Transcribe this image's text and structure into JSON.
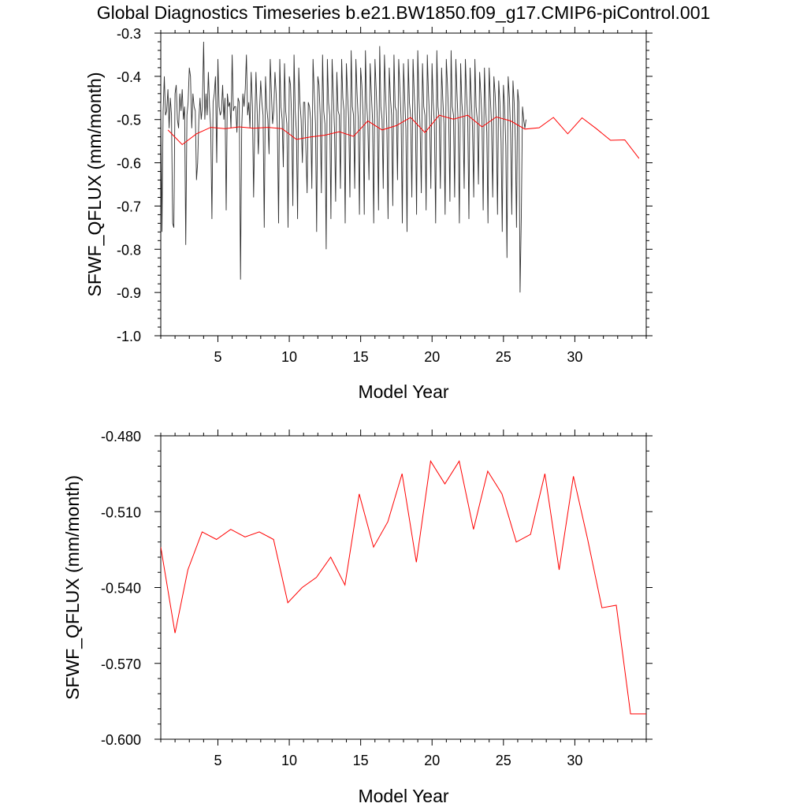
{
  "title": "Global Diagnostics Timeseries b.e21.BW1850.f09_g17.CMIP6-piControl.001",
  "colors": {
    "monthly": "#303030",
    "annual": "#ff0000",
    "axis": "#000000"
  },
  "chart_data": [
    {
      "type": "line",
      "title": "Global Diagnostics Timeseries b.e21.BW1850.f09_g17.CMIP6-piControl.001",
      "xlabel": "Model Year",
      "ylabel": "SFWF_QFLUX (mm/month)",
      "xlim": [
        1,
        35
      ],
      "ylim": [
        -1.0,
        -0.3
      ],
      "xticks": [
        5,
        10,
        15,
        20,
        25,
        30
      ],
      "xtick_labels": [
        "5",
        "10",
        "15",
        "20",
        "25",
        "30"
      ],
      "yticks": [
        -1.0,
        -0.9,
        -0.8,
        -0.7,
        -0.6,
        -0.5,
        -0.4,
        -0.3
      ],
      "ytick_labels": [
        "-1.0",
        "-0.9",
        "-0.8",
        "-0.7",
        "-0.6",
        "-0.5",
        "-0.4",
        "-0.3"
      ],
      "series": [
        {
          "name": "monthly",
          "color": "#303030",
          "x0": 1.0,
          "dx": 0.08333,
          "values": [
            -0.46,
            -0.76,
            -0.48,
            -0.4,
            -0.49,
            -0.48,
            -0.43,
            -0.52,
            -0.45,
            -0.49,
            -0.74,
            -0.75,
            -0.44,
            -0.42,
            -0.5,
            -0.52,
            -0.44,
            -0.48,
            -0.43,
            -0.5,
            -0.47,
            -0.79,
            -0.49,
            -0.46,
            -0.38,
            -0.4,
            -0.52,
            -0.44,
            -0.47,
            -0.48,
            -0.64,
            -0.6,
            -0.5,
            -0.45,
            -0.5,
            -0.47,
            -0.32,
            -0.5,
            -0.44,
            -0.49,
            -0.39,
            -0.47,
            -0.52,
            -0.73,
            -0.46,
            -0.44,
            -0.4,
            -0.6,
            -0.36,
            -0.47,
            -0.49,
            -0.48,
            -0.42,
            -0.5,
            -0.45,
            -0.71,
            -0.44,
            -0.47,
            -0.46,
            -0.52,
            -0.35,
            -0.48,
            -0.47,
            -0.47,
            -0.53,
            -0.45,
            -0.46,
            -0.87,
            -0.52,
            -0.44,
            -0.47,
            -0.43,
            -0.35,
            -0.49,
            -0.46,
            -0.52,
            -0.39,
            -0.47,
            -0.68,
            -0.51,
            -0.39,
            -0.48,
            -0.58,
            -0.48,
            -0.41,
            -0.46,
            -0.49,
            -0.75,
            -0.4,
            -0.47,
            -0.5,
            -0.58,
            -0.36,
            -0.44,
            -0.51,
            -0.48,
            -0.39,
            -0.44,
            -0.52,
            -0.74,
            -0.36,
            -0.47,
            -0.5,
            -0.61,
            -0.37,
            -0.48,
            -0.51,
            -0.75,
            -0.4,
            -0.42,
            -0.5,
            -0.7,
            -0.35,
            -0.48,
            -0.53,
            -0.73,
            -0.38,
            -0.46,
            -0.5,
            -0.6,
            -0.46,
            -0.46,
            -0.57,
            -0.67,
            -0.46,
            -0.47,
            -0.5,
            -0.66,
            -0.36,
            -0.44,
            -0.51,
            -0.76,
            -0.4,
            -0.42,
            -0.49,
            -0.67,
            -0.35,
            -0.48,
            -0.51,
            -0.8,
            -0.36,
            -0.46,
            -0.49,
            -0.73,
            -0.36,
            -0.44,
            -0.52,
            -0.69,
            -0.39,
            -0.48,
            -0.49,
            -0.66,
            -0.36,
            -0.45,
            -0.48,
            -0.74,
            -0.37,
            -0.44,
            -0.5,
            -0.68,
            -0.34,
            -0.47,
            -0.49,
            -0.66,
            -0.36,
            -0.44,
            -0.5,
            -0.72,
            -0.38,
            -0.42,
            -0.49,
            -0.72,
            -0.34,
            -0.46,
            -0.51,
            -0.64,
            -0.37,
            -0.44,
            -0.5,
            -0.74,
            -0.36,
            -0.43,
            -0.5,
            -0.71,
            -0.33,
            -0.47,
            -0.5,
            -0.66,
            -0.35,
            -0.44,
            -0.52,
            -0.73,
            -0.38,
            -0.45,
            -0.49,
            -0.7,
            -0.35,
            -0.47,
            -0.48,
            -0.64,
            -0.36,
            -0.43,
            -0.5,
            -0.74,
            -0.37,
            -0.45,
            -0.52,
            -0.76,
            -0.36,
            -0.46,
            -0.49,
            -0.68,
            -0.36,
            -0.44,
            -0.5,
            -0.72,
            -0.34,
            -0.45,
            -0.52,
            -0.67,
            -0.37,
            -0.47,
            -0.49,
            -0.71,
            -0.35,
            -0.44,
            -0.5,
            -0.66,
            -0.37,
            -0.46,
            -0.51,
            -0.74,
            -0.34,
            -0.47,
            -0.5,
            -0.66,
            -0.38,
            -0.45,
            -0.51,
            -0.72,
            -0.36,
            -0.42,
            -0.5,
            -0.69,
            -0.34,
            -0.47,
            -0.49,
            -0.68,
            -0.36,
            -0.44,
            -0.51,
            -0.74,
            -0.37,
            -0.46,
            -0.5,
            -0.66,
            -0.36,
            -0.44,
            -0.5,
            -0.73,
            -0.38,
            -0.45,
            -0.52,
            -0.68,
            -0.36,
            -0.47,
            -0.5,
            -0.65,
            -0.39,
            -0.44,
            -0.5,
            -0.71,
            -0.38,
            -0.47,
            -0.53,
            -0.74,
            -0.38,
            -0.45,
            -0.51,
            -0.68,
            -0.4,
            -0.44,
            -0.5,
            -0.72,
            -0.41,
            -0.46,
            -0.55,
            -0.76,
            -0.42,
            -0.47,
            -0.56,
            -0.82,
            -0.4,
            -0.45,
            -0.53,
            -0.72,
            -0.41,
            -0.46,
            -0.55,
            -0.75,
            -0.43,
            -0.46,
            -0.9,
            -0.72,
            -0.47,
            -0.5,
            -0.52,
            -0.5
          ]
        },
        {
          "name": "annual mean",
          "color": "#ff0000",
          "x": [
            1.5,
            2.5,
            3.5,
            4.5,
            5.5,
            6.5,
            7.5,
            8.5,
            9.5,
            10.5,
            11.5,
            12.5,
            13.5,
            14.5,
            15.5,
            16.5,
            17.5,
            18.5,
            19.5,
            20.5,
            21.5,
            22.5,
            23.5,
            24.5,
            25.5,
            26.5,
            27.5,
            28.5,
            29.5,
            30.5,
            31.5,
            32.5,
            33.5,
            34.5
          ],
          "values": [
            -0.524,
            -0.558,
            -0.533,
            -0.518,
            -0.521,
            -0.517,
            -0.52,
            -0.518,
            -0.521,
            -0.546,
            -0.54,
            -0.536,
            -0.528,
            -0.539,
            -0.503,
            -0.524,
            -0.514,
            -0.495,
            -0.53,
            -0.49,
            -0.499,
            -0.49,
            -0.517,
            -0.494,
            -0.503,
            -0.522,
            -0.519,
            -0.495,
            -0.533,
            -0.496,
            -0.521,
            -0.548,
            -0.547,
            -0.59
          ]
        }
      ]
    },
    {
      "type": "line",
      "title": "",
      "xlabel": "Model Year",
      "ylabel": "SFWF_QFLUX (mm/month)",
      "xlim": [
        1,
        35
      ],
      "ylim": [
        -0.6,
        -0.48
      ],
      "xticks": [
        5,
        10,
        15,
        20,
        25,
        30
      ],
      "xtick_labels": [
        "5",
        "10",
        "15",
        "20",
        "25",
        "30"
      ],
      "yticks": [
        -0.6,
        -0.57,
        -0.54,
        -0.51,
        -0.48
      ],
      "ytick_labels": [
        "-0.600",
        "-0.570",
        "-0.540",
        "-0.510",
        "-0.480"
      ],
      "series": [
        {
          "name": "annual mean",
          "color": "#ff0000",
          "x": [
            1.0,
            2.0,
            2.9,
            3.9,
            4.9,
            5.9,
            6.9,
            7.9,
            8.9,
            9.9,
            10.9,
            11.9,
            12.9,
            13.9,
            14.9,
            15.9,
            16.9,
            17.9,
            18.9,
            19.9,
            20.9,
            21.9,
            22.9,
            23.9,
            24.9,
            25.9,
            26.9,
            27.9,
            28.9,
            29.9,
            30.9,
            31.9,
            32.9,
            33.9,
            35.0
          ],
          "values": [
            -0.524,
            -0.558,
            -0.533,
            -0.518,
            -0.521,
            -0.517,
            -0.52,
            -0.518,
            -0.521,
            -0.546,
            -0.54,
            -0.536,
            -0.528,
            -0.539,
            -0.503,
            -0.524,
            -0.514,
            -0.495,
            -0.53,
            -0.49,
            -0.499,
            -0.49,
            -0.517,
            -0.494,
            -0.503,
            -0.522,
            -0.519,
            -0.495,
            -0.533,
            -0.496,
            -0.521,
            -0.548,
            -0.547,
            -0.59,
            -0.59
          ]
        }
      ]
    }
  ]
}
